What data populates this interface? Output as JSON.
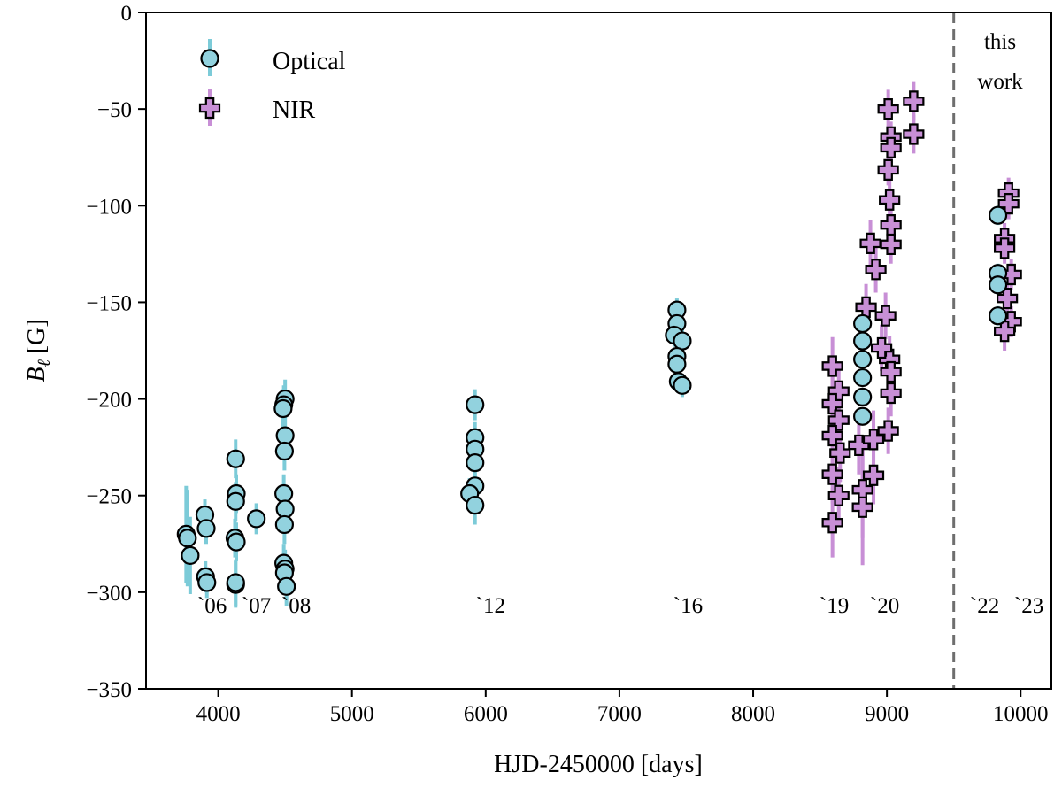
{
  "chart_data": {
    "type": "scatter",
    "xlabel": "HJD-2450000 [days]",
    "ylabel": {
      "main": "B",
      "sub": "ℓ",
      "unit": " [G]"
    },
    "xlim": [
      3460,
      10230
    ],
    "ylim": [
      -350,
      0
    ],
    "xticks": [
      4000,
      5000,
      6000,
      7000,
      8000,
      9000,
      10000
    ],
    "yticks": [
      0,
      -50,
      -100,
      -150,
      -200,
      -250,
      -300,
      -350
    ],
    "grid": false,
    "legend_placement": "top-left",
    "colors": {
      "optical_fill": "#92d2de",
      "optical_err": "#7ccbd8",
      "nir_fill": "#c88fd6",
      "nir_err": "#c88fd6",
      "edge": "#000000",
      "divider": "#6e6e6e"
    },
    "divider": {
      "x": 9500,
      "style": "dashed",
      "label": [
        "this",
        "work"
      ]
    },
    "season_labels": [
      {
        "text": "`06",
        "x": 3954
      },
      {
        "text": "`07",
        "x": 4285
      },
      {
        "text": "`08",
        "x": 4582
      },
      {
        "text": "`12",
        "x": 6037
      },
      {
        "text": "`16",
        "x": 7513
      },
      {
        "text": "`19",
        "x": 8606
      },
      {
        "text": "`20",
        "x": 8983
      },
      {
        "text": "`22",
        "x": 9731
      },
      {
        "text": "`23",
        "x": 10062
      }
    ],
    "season_label_y": -307,
    "series": [
      {
        "name": "Optical",
        "marker": "circle",
        "points": [
          [
            3760,
            -270,
            25
          ],
          [
            3770,
            -272,
            25
          ],
          [
            3790,
            -281,
            20
          ],
          [
            3900,
            -260,
            8
          ],
          [
            3910,
            -267,
            8
          ],
          [
            3905,
            -292,
            8
          ],
          [
            3915,
            -295,
            8
          ],
          [
            4130,
            -231,
            10
          ],
          [
            4135,
            -249,
            10
          ],
          [
            4130,
            -253,
            10
          ],
          [
            4125,
            -272,
            10
          ],
          [
            4135,
            -274,
            10
          ],
          [
            4130,
            -296,
            12
          ],
          [
            4130,
            -295,
            12
          ],
          [
            4285,
            -262,
            8
          ],
          [
            4500,
            -200,
            10
          ],
          [
            4490,
            -203,
            10
          ],
          [
            4485,
            -205,
            10
          ],
          [
            4500,
            -219,
            10
          ],
          [
            4495,
            -227,
            10
          ],
          [
            4490,
            -249,
            10
          ],
          [
            4500,
            -257,
            10
          ],
          [
            4495,
            -265,
            10
          ],
          [
            4490,
            -285,
            10
          ],
          [
            4500,
            -288,
            10
          ],
          [
            4495,
            -290,
            10
          ],
          [
            4510,
            -297,
            10
          ],
          [
            5920,
            -203,
            8
          ],
          [
            5920,
            -220,
            8
          ],
          [
            5920,
            -226,
            8
          ],
          [
            5920,
            -233,
            8
          ],
          [
            5920,
            -245,
            8
          ],
          [
            5880,
            -249,
            8
          ],
          [
            5920,
            -255,
            10
          ],
          [
            7430,
            -154,
            6
          ],
          [
            7430,
            -161,
            6
          ],
          [
            7410,
            -167,
            6
          ],
          [
            7470,
            -170,
            6
          ],
          [
            7430,
            -178,
            6
          ],
          [
            7430,
            -182,
            6
          ],
          [
            7440,
            -191,
            6
          ],
          [
            7470,
            -193,
            6
          ],
          [
            8818,
            -161,
            4
          ],
          [
            8818,
            -170,
            4
          ],
          [
            8818,
            -179.5,
            4
          ],
          [
            8818,
            -189,
            4
          ],
          [
            8818,
            -199,
            4
          ],
          [
            8818,
            -209,
            4
          ],
          [
            9830,
            -105,
            5
          ],
          [
            9830,
            -135,
            5
          ],
          [
            9830,
            -141,
            5
          ],
          [
            9830,
            -157,
            5
          ]
        ]
      },
      {
        "name": "NIR",
        "marker": "plus",
        "points": [
          [
            9010,
            -50,
            10
          ],
          [
            9200,
            -46,
            10
          ],
          [
            9200,
            -63,
            10
          ],
          [
            9030,
            -64.5,
            8
          ],
          [
            9030,
            -70,
            8
          ],
          [
            9010,
            -81.5,
            8
          ],
          [
            9020,
            -97,
            10
          ],
          [
            9030,
            -110,
            10
          ],
          [
            9030,
            -120,
            10
          ],
          [
            8877,
            -119.5,
            12
          ],
          [
            8917,
            -133,
            12
          ],
          [
            8844,
            -152.5,
            12
          ],
          [
            8990,
            -157,
            12
          ],
          [
            8593,
            -183,
            15
          ],
          [
            8640,
            -196,
            15
          ],
          [
            8593,
            -202.5,
            15
          ],
          [
            8640,
            -211,
            15
          ],
          [
            8593,
            -219,
            15
          ],
          [
            8650,
            -228,
            15
          ],
          [
            8593,
            -239,
            15
          ],
          [
            8640,
            -250,
            15
          ],
          [
            8593,
            -264,
            18
          ],
          [
            8818,
            -247,
            25
          ],
          [
            8818,
            -256,
            30
          ],
          [
            8900,
            -239.5,
            15
          ],
          [
            8790,
            -224,
            15
          ],
          [
            8900,
            -221,
            15
          ],
          [
            9020,
            -179.5,
            12
          ],
          [
            9030,
            -186,
            12
          ],
          [
            9030,
            -197,
            12
          ],
          [
            9010,
            -216.5,
            12
          ],
          [
            8960,
            -173.6,
            12
          ],
          [
            9910,
            -93.5,
            8
          ],
          [
            9910,
            -99,
            8
          ],
          [
            9880,
            -117,
            8
          ],
          [
            9880,
            -122,
            8
          ],
          [
            9930,
            -135.6,
            8
          ],
          [
            9900,
            -148,
            8
          ],
          [
            9930,
            -160,
            8
          ],
          [
            9880,
            -165,
            10
          ]
        ]
      }
    ]
  }
}
